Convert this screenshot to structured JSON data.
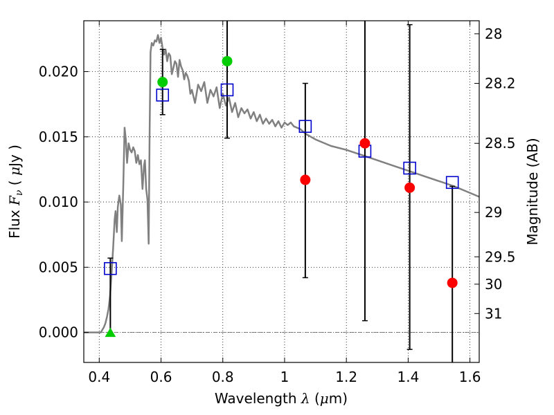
{
  "chart_data": {
    "type": "scatter",
    "xlabel": "Wavelength  λ (μm)",
    "ylabel_left": "Flux  F_ν  ( μJy )",
    "ylabel_right": "Magnitude (AB)",
    "xlim": [
      0.35,
      1.63
    ],
    "ylim": [
      -0.0023,
      0.0239
    ],
    "grid": true,
    "x_ticks": [
      0.4,
      0.6,
      0.8,
      1.0,
      1.2,
      1.4,
      1.6
    ],
    "x_tick_labels": [
      "0.4",
      "0.6",
      "0.8",
      "1",
      "1.2",
      "1.4",
      "1.6"
    ],
    "y_ticks": [
      0.0,
      0.005,
      0.01,
      0.015,
      0.02
    ],
    "y_tick_labels": [
      "0.000",
      "0.005",
      "0.010",
      "0.015",
      "0.020"
    ],
    "right_ticks": [
      {
        "label": "28",
        "flux": 0.0229
      },
      {
        "label": "28.2",
        "flux": 0.0191
      },
      {
        "label": "28.5",
        "flux": 0.0145
      },
      {
        "label": "29",
        "flux": 0.0092
      },
      {
        "label": "29.5",
        "flux": 0.0058
      },
      {
        "label": "30",
        "flux": 0.0037
      },
      {
        "label": "31",
        "flux": 0.00145
      }
    ],
    "zero_line": 0.0,
    "model_sed": {
      "color": "#808080",
      "x": [
        0.35,
        0.38,
        0.405,
        0.415,
        0.42,
        0.425,
        0.43,
        0.435,
        0.44,
        0.445,
        0.45,
        0.453,
        0.457,
        0.46,
        0.465,
        0.47,
        0.473,
        0.478,
        0.482,
        0.486,
        0.49,
        0.495,
        0.5,
        0.505,
        0.51,
        0.515,
        0.52,
        0.525,
        0.53,
        0.535,
        0.54,
        0.545,
        0.548,
        0.552,
        0.556,
        0.56,
        0.563,
        0.566,
        0.57,
        0.575,
        0.58,
        0.585,
        0.59,
        0.595,
        0.6,
        0.605,
        0.61,
        0.615,
        0.62,
        0.625,
        0.63,
        0.635,
        0.64,
        0.645,
        0.65,
        0.655,
        0.66,
        0.665,
        0.67,
        0.675,
        0.68,
        0.685,
        0.69,
        0.695,
        0.7,
        0.71,
        0.72,
        0.73,
        0.74,
        0.75,
        0.76,
        0.77,
        0.78,
        0.79,
        0.8,
        0.81,
        0.82,
        0.83,
        0.84,
        0.85,
        0.86,
        0.87,
        0.88,
        0.89,
        0.9,
        0.91,
        0.92,
        0.93,
        0.94,
        0.95,
        0.96,
        0.97,
        0.98,
        0.99,
        1.0,
        1.01,
        1.02,
        1.03,
        1.05,
        1.07,
        1.1,
        1.15,
        1.2,
        1.25,
        1.3,
        1.35,
        1.4,
        1.45,
        1.5,
        1.55,
        1.6,
        1.63
      ],
      "y": [
        0.0,
        0.0,
        0.0,
        0.0004,
        0.0007,
        0.0012,
        0.0018,
        0.0028,
        0.0045,
        0.0065,
        0.0087,
        0.0093,
        0.0077,
        0.0096,
        0.0105,
        0.0098,
        0.007,
        0.0114,
        0.0157,
        0.0148,
        0.013,
        0.0145,
        0.014,
        0.0138,
        0.0142,
        0.0139,
        0.013,
        0.0136,
        0.0129,
        0.0132,
        0.011,
        0.0128,
        0.0132,
        0.011,
        0.0102,
        0.0068,
        0.015,
        0.0215,
        0.0222,
        0.022,
        0.0224,
        0.0223,
        0.0228,
        0.0222,
        0.0226,
        0.0218,
        0.0213,
        0.0217,
        0.0208,
        0.0214,
        0.0212,
        0.0198,
        0.0203,
        0.0208,
        0.0206,
        0.0196,
        0.0209,
        0.0204,
        0.0201,
        0.0194,
        0.0199,
        0.0197,
        0.0193,
        0.0183,
        0.0186,
        0.0176,
        0.019,
        0.0185,
        0.0192,
        0.0176,
        0.0186,
        0.0181,
        0.0188,
        0.0172,
        0.0183,
        0.0174,
        0.018,
        0.0169,
        0.0176,
        0.0165,
        0.0172,
        0.0168,
        0.0171,
        0.0164,
        0.0169,
        0.0162,
        0.0167,
        0.016,
        0.0164,
        0.016,
        0.0163,
        0.0158,
        0.0162,
        0.0157,
        0.0161,
        0.0159,
        0.0161,
        0.0158,
        0.0156,
        0.0152,
        0.0148,
        0.0143,
        0.014,
        0.0136,
        0.0132,
        0.0128,
        0.0124,
        0.012,
        0.0116,
        0.0112,
        0.0107,
        0.0104
      ]
    },
    "model_points": {
      "marker": "open-square",
      "color": "#0000cc",
      "x": [
        0.436,
        0.605,
        0.814,
        1.067,
        1.26,
        1.405,
        1.543
      ],
      "y": [
        0.0049,
        0.0182,
        0.0186,
        0.0158,
        0.0139,
        0.0126,
        0.0115
      ]
    },
    "error_bars": [
      {
        "x": 0.436,
        "low": 0.0,
        "high": 0.0057
      },
      {
        "x": 0.605,
        "low": 0.0167,
        "high": 0.0217
      },
      {
        "x": 0.814,
        "low": 0.0149,
        "high": 0.0245
      },
      {
        "x": 1.067,
        "low": 0.0042,
        "high": 0.0191
      },
      {
        "x": 1.26,
        "low": 0.0009,
        "high": 0.0245
      },
      {
        "x": 1.405,
        "low": -0.0013,
        "high": 0.0236
      },
      {
        "x": 1.543,
        "low": -0.0025,
        "high": 0.0112
      }
    ],
    "observed_detections": {
      "marker": "filled-circle",
      "color": "#00cc00",
      "x": [
        0.605,
        0.814
      ],
      "y": [
        0.0192,
        0.0208
      ]
    },
    "observed_low": {
      "marker": "filled-circle",
      "color": "#ff0000",
      "x": [
        1.067,
        1.26,
        1.405,
        1.543
      ],
      "y": [
        0.0117,
        0.0145,
        0.0111,
        0.0038
      ]
    },
    "upper_limit_marker": {
      "marker": "filled-triangle",
      "color": "#00cc00",
      "x": 0.436,
      "y": 0.0
    }
  }
}
